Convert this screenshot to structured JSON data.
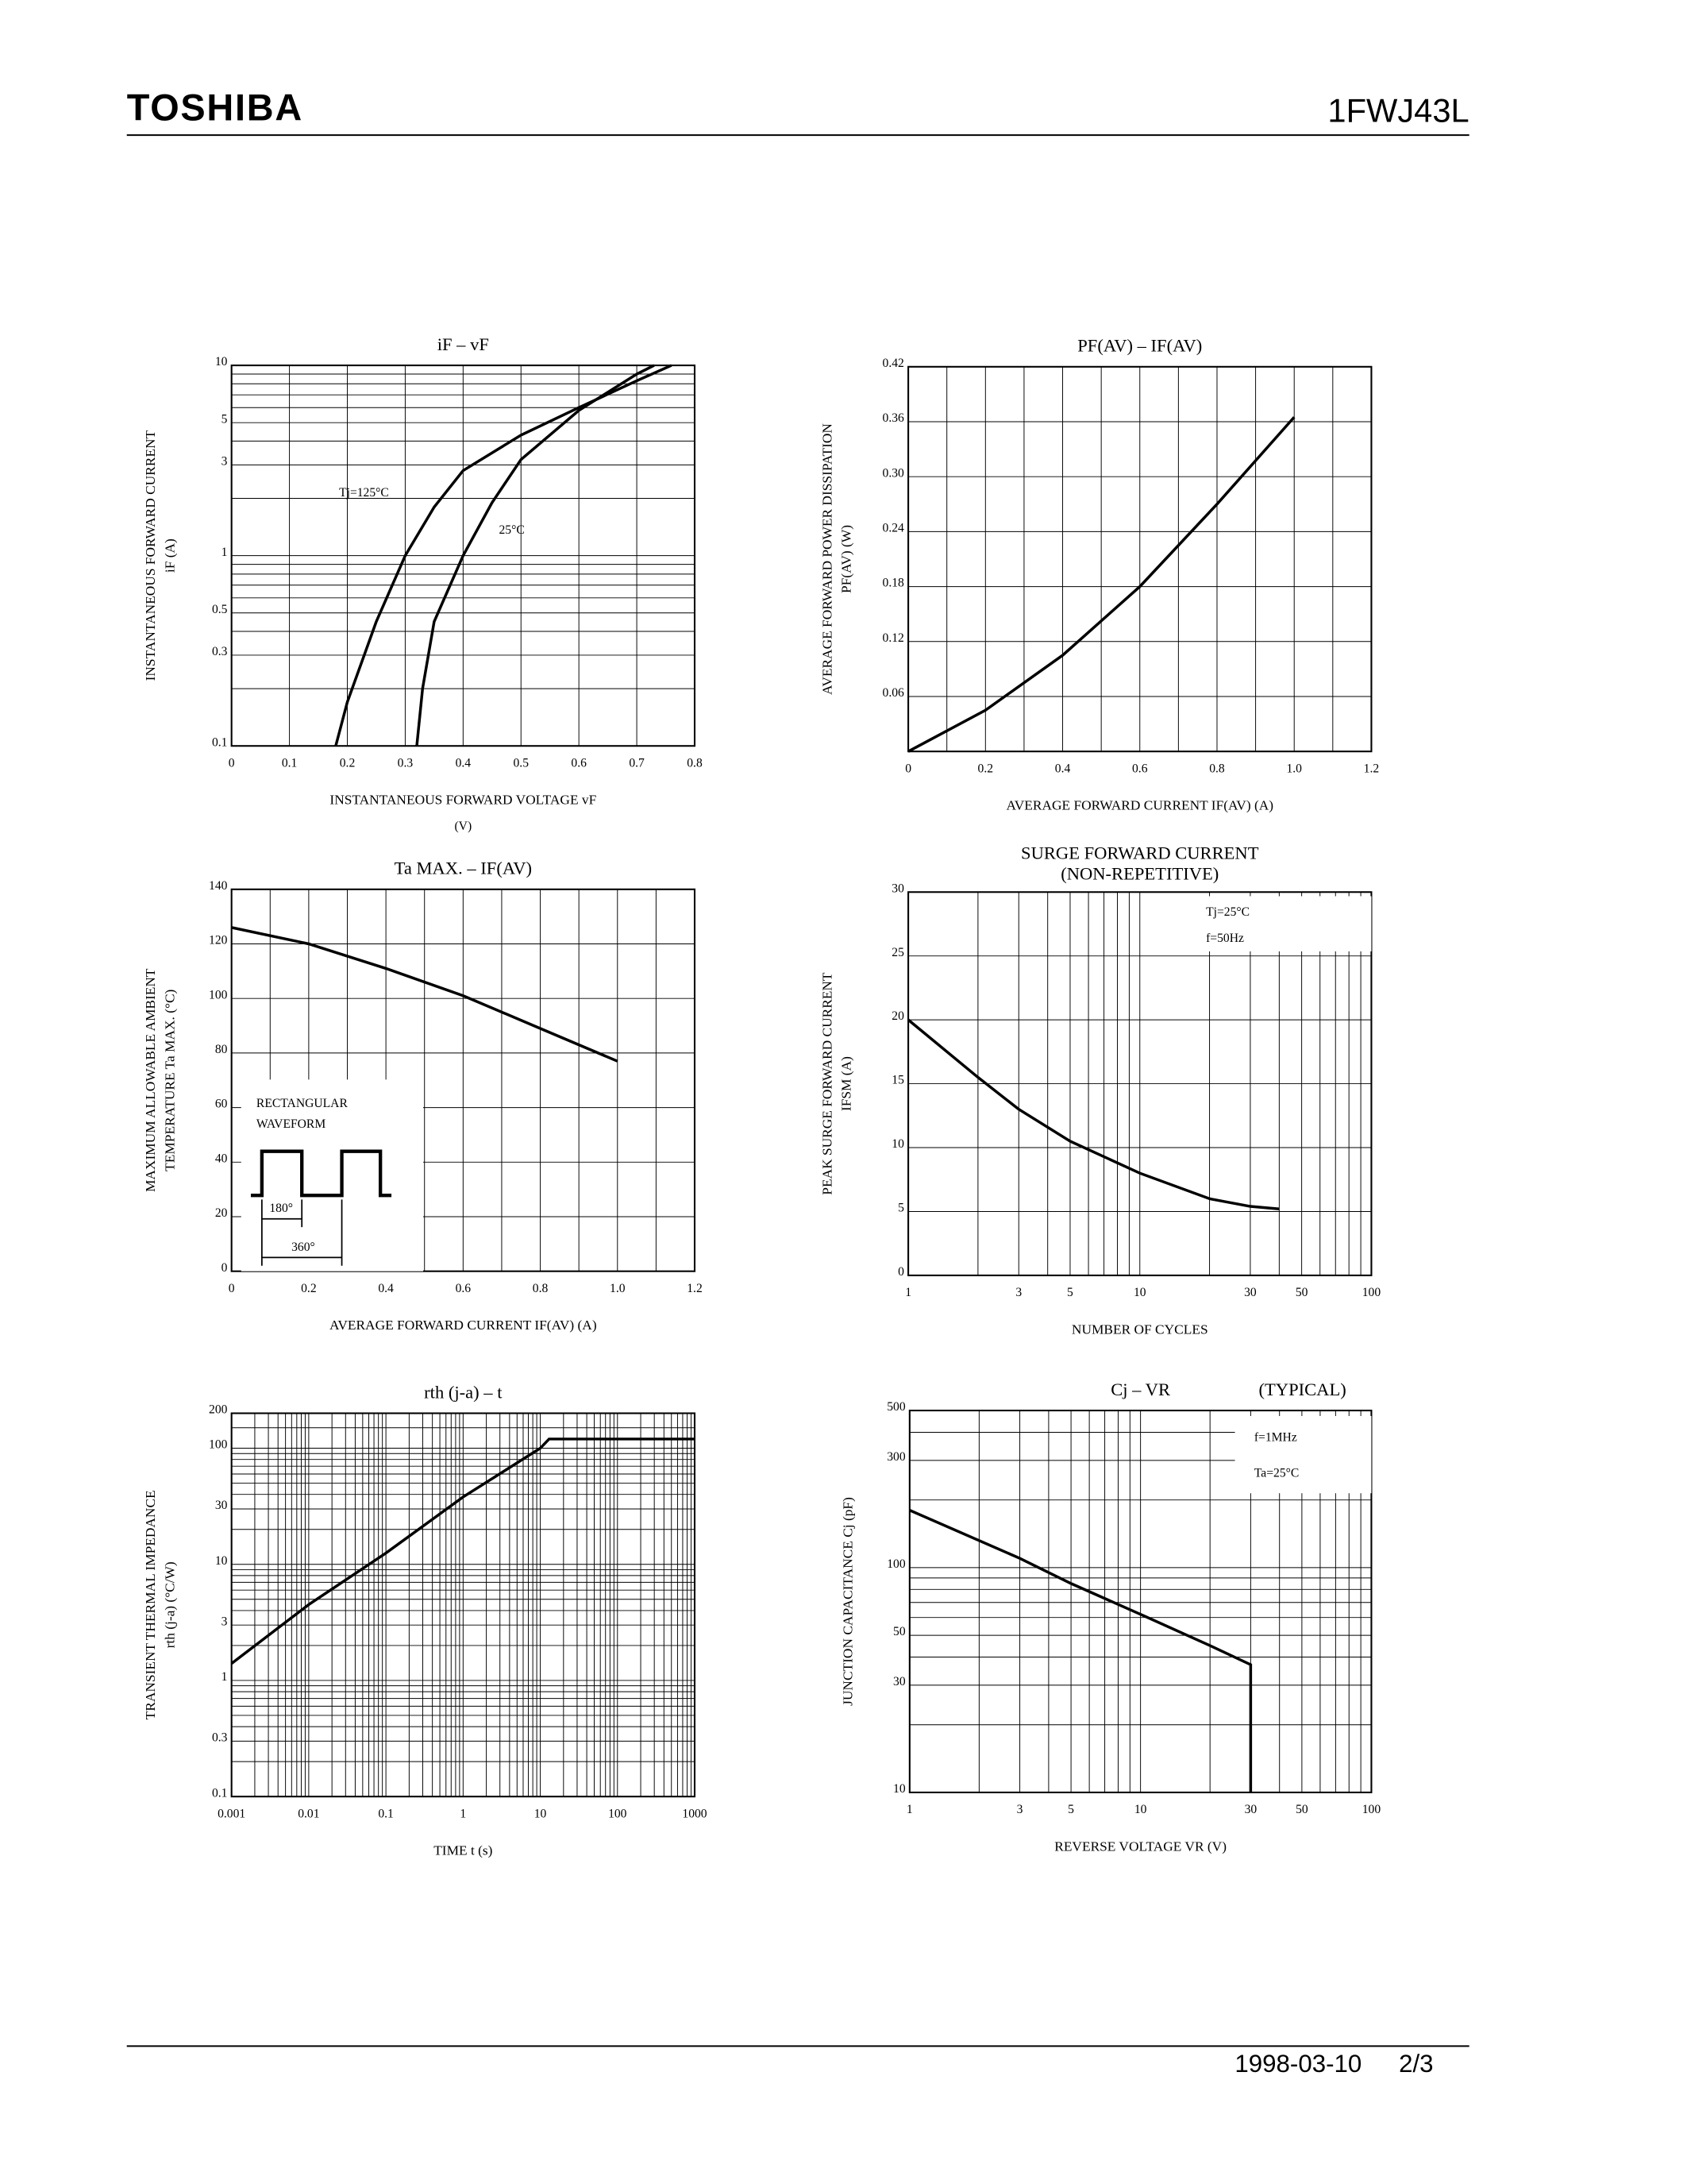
{
  "header": {
    "brand": "TOSHIBA",
    "part": "1FWJ43L"
  },
  "footer": {
    "date": "1998-03-10",
    "page": "2/3"
  },
  "chart_data": [
    {
      "type": "line",
      "title": "iF – vF",
      "xlabel": "INSTANTANEOUS FORWARD VOLTAGE vF",
      "xlabel2": "(V)",
      "ylabel": "INSTANTANEOUS FORWARD CURRENT",
      "ylabel2": "iF (A)",
      "xlim": [
        0,
        0.8
      ],
      "xticks": [
        0,
        0.1,
        0.2,
        0.3,
        0.4,
        0.5,
        0.6,
        0.7,
        0.8
      ],
      "yscale": "log",
      "ylim": [
        0.1,
        10
      ],
      "yticks": [
        0.1,
        0.3,
        0.5,
        1,
        3,
        5,
        10
      ],
      "yminor": [
        0.2,
        0.4,
        0.6,
        0.7,
        0.8,
        0.9,
        2,
        4,
        6,
        7,
        8,
        9
      ],
      "series": [
        {
          "name": "Tj=125°C",
          "color": "#000000",
          "x": [
            0.18,
            0.2,
            0.25,
            0.3,
            0.35,
            0.4,
            0.5,
            0.6,
            0.7,
            0.76
          ],
          "values": [
            0.1,
            0.17,
            0.45,
            1.0,
            1.8,
            2.8,
            4.3,
            6.0,
            8.3,
            10
          ]
        },
        {
          "name": "25°C",
          "color": "#000000",
          "x": [
            0.32,
            0.33,
            0.35,
            0.4,
            0.45,
            0.5,
            0.6,
            0.7,
            0.73
          ],
          "values": [
            0.1,
            0.2,
            0.45,
            1.0,
            1.9,
            3.2,
            5.8,
            9,
            10
          ]
        }
      ]
    },
    {
      "type": "line",
      "title": "PF(AV) – IF(AV)",
      "xlabel": "AVERAGE FORWARD CURRENT IF(AV) (A)",
      "ylabel": "AVERAGE FORWARD POWER DISSIPATION",
      "ylabel2": "PF(AV) (W)",
      "xlim": [
        0,
        1.2
      ],
      "xticks": [
        0,
        0.2,
        0.4,
        0.6,
        0.8,
        {
          "value": 1,
          "label": "1.0"
        },
        1.2
      ],
      "xminor": [
        0.1,
        0.3,
        0.5,
        0.7,
        0.9,
        1.1
      ],
      "ylim": [
        0,
        0.42
      ],
      "yticks": [
        0.06,
        0.12,
        0.18,
        0.24,
        {
          "value": 0.3,
          "label": "0.30"
        },
        0.36,
        0.42
      ],
      "series": [
        {
          "name": null,
          "color": "#000000",
          "x": [
            0,
            0.2,
            0.4,
            0.6,
            0.8,
            1.0
          ],
          "values": [
            0,
            0.045,
            0.105,
            0.18,
            0.27,
            0.365
          ]
        }
      ]
    },
    {
      "type": "line",
      "title": "Ta MAX. – IF(AV)",
      "xlabel": "AVERAGE FORWARD CURRENT IF(AV) (A)",
      "ylabel": "MAXIMUM ALLOWABLE AMBIENT",
      "ylabel2": "TEMPERATURE Ta MAX. (°C)",
      "xlim": [
        0,
        1.2
      ],
      "xticks": [
        0,
        0.2,
        0.4,
        0.6,
        0.8,
        {
          "value": 1,
          "label": "1.0"
        },
        1.2
      ],
      "xminor": [
        0.1,
        0.3,
        0.5,
        0.7,
        0.9,
        1.1
      ],
      "ylim": [
        0,
        140
      ],
      "yticks": [
        0,
        20,
        40,
        60,
        80,
        100,
        120,
        140
      ],
      "inset": {
        "title": [
          "RECTANGULAR",
          "WAVEFORM"
        ],
        "labels": [
          "180°",
          "360°"
        ]
      },
      "series": [
        {
          "name": null,
          "color": "#000000",
          "x": [
            0,
            0.2,
            0.4,
            0.6,
            0.8,
            1.0
          ],
          "values": [
            126,
            120,
            111,
            101,
            89,
            77
          ]
        }
      ]
    },
    {
      "type": "line",
      "title": "SURGE FORWARD CURRENT",
      "title2": "(NON-REPETITIVE)",
      "xlabel": "NUMBER OF CYCLES",
      "ylabel": "PEAK SURGE FORWARD CURRENT",
      "ylabel2": "IFSM (A)",
      "xscale": "log",
      "xlim": [
        1,
        100
      ],
      "xticks": [
        1,
        3,
        5,
        10,
        30,
        50,
        100
      ],
      "xminor": [
        2,
        4,
        6,
        7,
        8,
        9,
        20,
        40,
        60,
        70,
        80,
        90
      ],
      "ylim": [
        0,
        30
      ],
      "yticks": [
        0,
        5,
        10,
        15,
        20,
        25,
        30
      ],
      "annotations": [
        "Tj=25°C",
        "f=50Hz"
      ],
      "series": [
        {
          "name": null,
          "color": "#000000",
          "x": [
            1,
            2,
            3,
            5,
            10,
            20,
            30,
            40
          ],
          "values": [
            20,
            15.5,
            13,
            10.5,
            8,
            6,
            5.4,
            5.2
          ]
        }
      ]
    },
    {
      "type": "line",
      "title": "rth (j-a) – t",
      "xlabel": "TIME t (s)",
      "ylabel": "TRANSIENT THERMAL IMPEDANCE",
      "ylabel2": "rth (j-a) (°C/W)",
      "xscale": "log",
      "xlim": [
        0.001,
        1000
      ],
      "xticks": [
        0.001,
        0.01,
        0.1,
        1,
        10,
        100,
        1000
      ],
      "xminor": [
        0.002,
        0.003,
        0.004,
        0.005,
        0.006,
        0.007,
        0.008,
        0.009,
        0.02,
        0.03,
        0.04,
        0.05,
        0.06,
        0.07,
        0.08,
        0.09,
        0.2,
        0.3,
        0.4,
        0.5,
        0.6,
        0.7,
        0.8,
        0.9,
        2,
        3,
        4,
        5,
        6,
        7,
        8,
        9,
        20,
        30,
        40,
        50,
        60,
        70,
        80,
        90,
        200,
        300,
        400,
        500,
        600,
        700,
        800,
        900
      ],
      "yscale": "log",
      "ylim": [
        0.1,
        200
      ],
      "yticks": [
        0.1,
        0.3,
        1,
        3,
        10,
        30,
        100,
        200
      ],
      "yminor": [
        0.2,
        0.4,
        0.5,
        0.6,
        0.7,
        0.8,
        0.9,
        2,
        4,
        5,
        6,
        7,
        8,
        9,
        20,
        40,
        50,
        60,
        70,
        80,
        90,
        150
      ],
      "series": [
        {
          "name": null,
          "color": "#000000",
          "x": [
            0.001,
            0.01,
            0.1,
            1,
            10,
            13,
            1000
          ],
          "values": [
            1.4,
            4.5,
            12.5,
            38,
            100,
            120,
            120
          ]
        }
      ]
    },
    {
      "type": "line",
      "title": "Cj – VR",
      "title2": "(TYPICAL)",
      "xlabel": "REVERSE VOLTAGE VR (V)",
      "ylabel": "JUNCTION CAPACITANCE Cj (pF)",
      "xscale": "log",
      "xlim": [
        1,
        100
      ],
      "xticks": [
        1,
        3,
        5,
        10,
        30,
        50,
        100
      ],
      "xminor": [
        2,
        4,
        6,
        7,
        8,
        9,
        20,
        40,
        60,
        70,
        80,
        90
      ],
      "yscale": "log",
      "ylim": [
        10,
        500
      ],
      "yticks": [
        10,
        30,
        50,
        100,
        300,
        500
      ],
      "yminor": [
        20,
        40,
        60,
        70,
        80,
        90,
        200,
        400
      ],
      "annotations": [
        "f=1MHz",
        "Ta=25°C"
      ],
      "series": [
        {
          "name": null,
          "color": "#000000",
          "x": [
            1,
            3,
            5,
            10,
            20,
            30,
            30
          ],
          "values": [
            180,
            110,
            85,
            62,
            45,
            37,
            10
          ]
        }
      ]
    }
  ]
}
